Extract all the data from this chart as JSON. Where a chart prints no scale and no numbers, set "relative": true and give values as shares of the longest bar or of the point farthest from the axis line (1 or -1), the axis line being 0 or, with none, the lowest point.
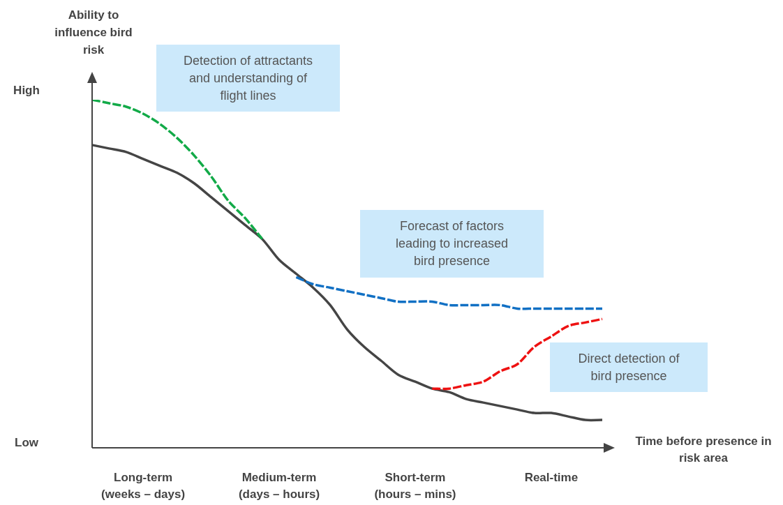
{
  "chart_data": {
    "type": "line",
    "relative": true,
    "ylabel": "Ability to influence bird risk",
    "xlabel": "Time before presence in risk area",
    "categories": [
      null,
      null,
      null,
      "Long-term\n(weeks – days)",
      null,
      null,
      null,
      null,
      null,
      null,
      null,
      "Medium-term\n(days – hours)",
      null,
      null,
      null,
      null,
      null,
      null,
      null,
      "Short-term\n(hours – mins)",
      null,
      null,
      null,
      null,
      null,
      null,
      null,
      "Real-time",
      null,
      null,
      null
    ],
    "annotations": [
      "High",
      "Low"
    ],
    "legend": false,
    "marker": "none",
    "series": [
      {
        "color": "#454545",
        "line_style": "solid",
        "values": [
          0.87,
          0.86,
          0.85,
          0.83,
          0.81,
          0.79,
          0.76,
          0.72,
          0.68,
          0.64,
          0.6,
          0.54,
          0.5,
          0.46,
          0.41,
          0.34,
          0.29,
          0.25,
          0.21,
          0.19,
          0.17,
          0.16,
          0.14,
          0.13,
          0.12,
          0.11,
          0.1,
          0.1,
          0.09,
          0.08,
          0.08
        ]
      },
      {
        "name": "Detection of attractants and understanding of flight lines",
        "color": "#12aa48",
        "line_style": "dashed",
        "values": [
          1.0,
          0.99,
          0.98,
          0.96,
          0.93,
          0.89,
          0.84,
          0.78,
          0.71,
          0.66,
          0.6,
          null,
          null,
          null,
          null,
          null,
          null,
          null,
          null,
          null,
          null,
          null,
          null,
          null,
          null,
          null,
          null,
          null,
          null,
          null,
          null
        ]
      },
      {
        "name": "Forecast of factors leading to increased bird presence",
        "color": "#1170c4",
        "line_style": "dashed",
        "values": [
          null,
          null,
          null,
          null,
          null,
          null,
          null,
          null,
          null,
          null,
          null,
          null,
          0.49,
          0.47,
          0.46,
          0.45,
          0.44,
          0.43,
          0.42,
          0.42,
          0.42,
          0.41,
          0.41,
          0.41,
          0.41,
          0.4,
          0.4,
          0.4,
          0.4,
          0.4,
          0.4
        ]
      },
      {
        "name": "Direct detection of bird presence",
        "color": "#ee1111",
        "line_style": "dashed",
        "values": [
          null,
          null,
          null,
          null,
          null,
          null,
          null,
          null,
          null,
          null,
          null,
          null,
          null,
          null,
          null,
          null,
          null,
          null,
          null,
          null,
          0.17,
          0.17,
          0.18,
          0.19,
          0.22,
          0.24,
          0.29,
          0.32,
          0.35,
          0.36,
          0.37
        ]
      }
    ]
  }
}
